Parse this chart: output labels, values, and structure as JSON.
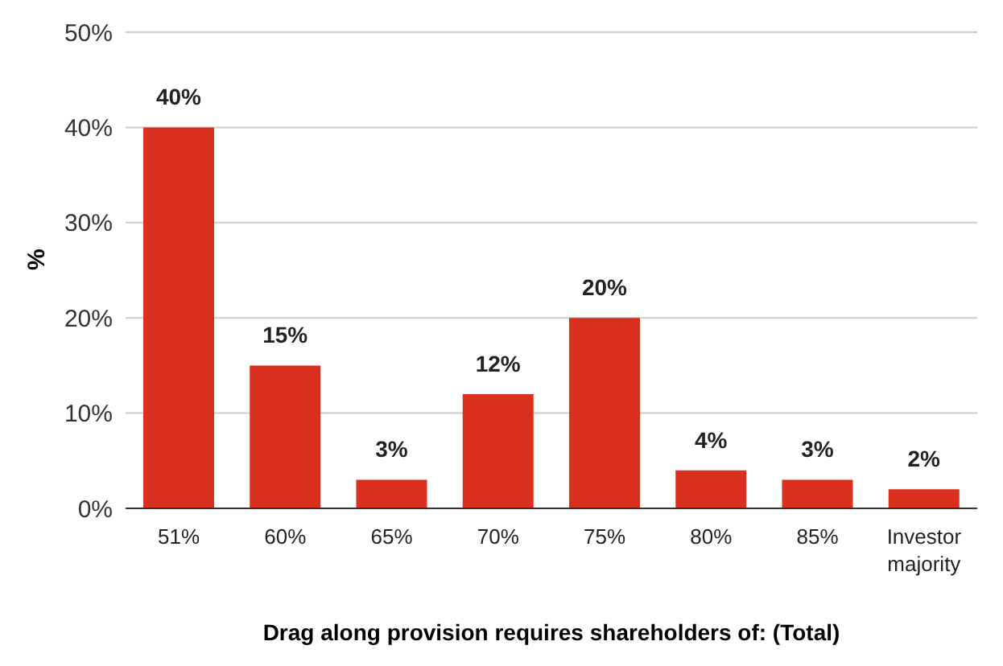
{
  "chart_data": {
    "type": "bar",
    "xlabel": "Drag along provision requires shareholders of: (Total)",
    "ylabel": "%",
    "categories": [
      "51%",
      "60%",
      "65%",
      "70%",
      "75%",
      "80%",
      "85%",
      "Investor majority"
    ],
    "values": [
      40,
      15,
      3,
      12,
      20,
      4,
      3,
      2
    ],
    "color": "#d9301f",
    "data_labels": true,
    "value_labels": [
      "40%",
      "15%",
      "3%",
      "12%",
      "20%",
      "4%",
      "3%",
      "2%"
    ],
    "ylim": [
      0,
      50
    ],
    "yticks": [
      {
        "value": 0,
        "label": "0%"
      },
      {
        "value": 10,
        "label": "10%"
      },
      {
        "value": 20,
        "label": "20%"
      },
      {
        "value": 30,
        "label": "30%"
      },
      {
        "value": 40,
        "label": "40%"
      },
      {
        "value": 50,
        "label": "50%"
      }
    ],
    "grid": "y"
  }
}
